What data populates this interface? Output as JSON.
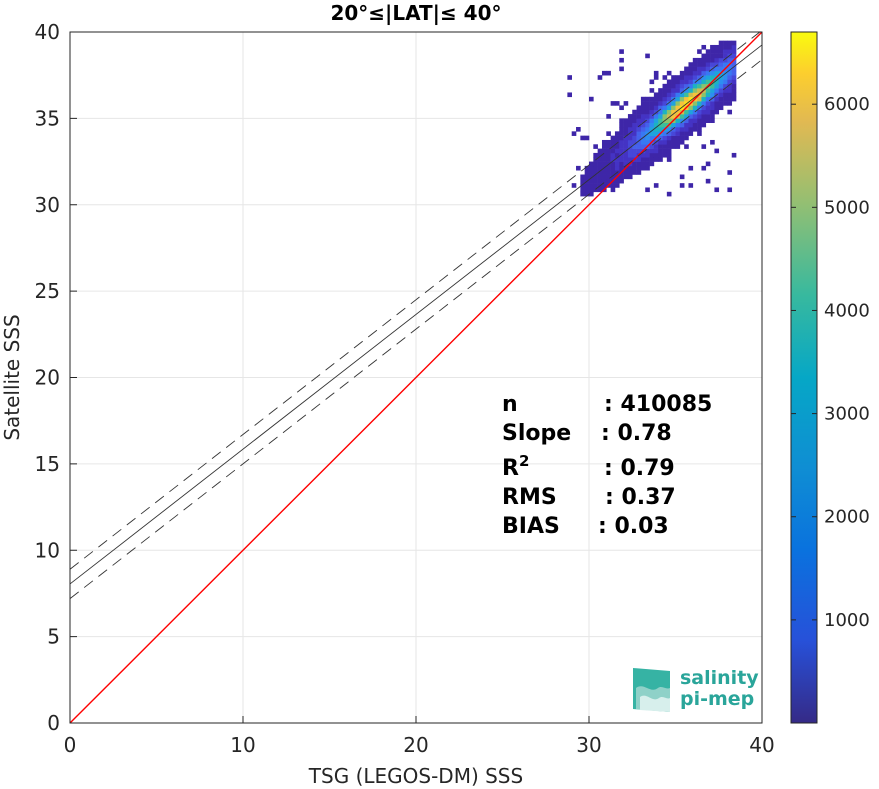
{
  "chart_data": {
    "type": "heatmap",
    "title": "20°≤|LAT|≤ 40°",
    "xlabel": "TSG (LEGOS-DM) SSS",
    "ylabel": "Satellite SSS",
    "xlim": [
      0,
      40
    ],
    "ylim": [
      0,
      40
    ],
    "xticks": [
      "0",
      "10",
      "20",
      "30",
      "40"
    ],
    "yticks": [
      "0",
      "5",
      "10",
      "15",
      "20",
      "25",
      "30",
      "35",
      "40"
    ],
    "grid": true,
    "colorbar": {
      "range": [
        0,
        6700
      ],
      "ticks": [
        "1000",
        "2000",
        "3000",
        "4000",
        "5000",
        "6000"
      ],
      "colormap": "parula"
    },
    "lines": [
      {
        "name": "1:1",
        "style": "solid",
        "color": "#ff0000",
        "x": [
          0,
          40
        ],
        "y": [
          0,
          40
        ]
      },
      {
        "name": "fit",
        "style": "solid",
        "color": "#333333",
        "x": [
          0,
          40
        ],
        "y": [
          8.05,
          39.25
        ]
      },
      {
        "name": "fit+std",
        "style": "dashed",
        "color": "#333333",
        "x": [
          0,
          40
        ],
        "y": [
          8.9,
          40.1
        ]
      },
      {
        "name": "fit-std",
        "style": "dashed",
        "color": "#333333",
        "x": [
          0,
          40
        ],
        "y": [
          7.2,
          38.4
        ]
      }
    ],
    "density_center": {
      "x": 35.5,
      "y": 35.9
    },
    "stats": [
      {
        "label": "n",
        "value": ": 410085"
      },
      {
        "label": "Slope",
        "value": ": 0.78"
      },
      {
        "label": "R",
        "sup": "2",
        "value": ": 0.79"
      },
      {
        "label": "RMS",
        "value": ": 0.37"
      },
      {
        "label": "BIAS",
        "value": ": 0.03"
      }
    ]
  },
  "logo": {
    "line1": "salinity",
    "line2": "pi-mep"
  }
}
